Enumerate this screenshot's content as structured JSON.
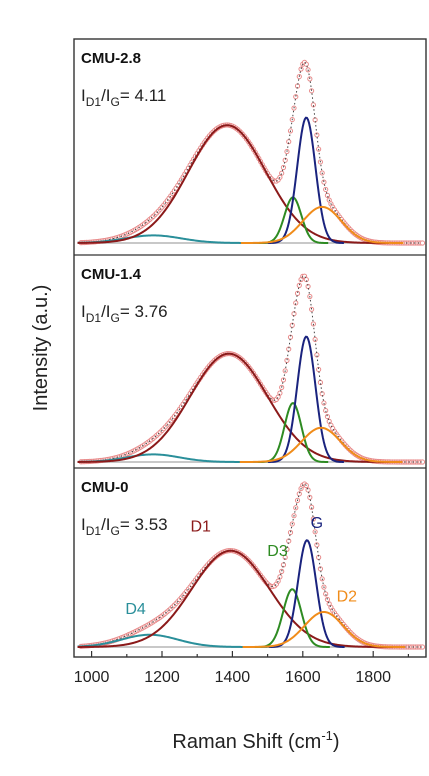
{
  "chart_data": {
    "type": "line",
    "xlabel": "Raman Shift (cm",
    "xlabel_sup": "-1",
    "xlabel_close": ")",
    "ylabel": "Intensity (a.u.)",
    "xlim": [
      950,
      1950
    ],
    "xticks": [
      1000,
      1200,
      1400,
      1600,
      1800
    ],
    "grid": false,
    "panels": [
      {
        "name": "CMU-2.8",
        "ratio_I": "I",
        "ratio_D1": "D1",
        "ratio_slash": "/I",
        "ratio_G": "G",
        "ratio_value": "= 4.11",
        "peaks": [
          {
            "id": "D4",
            "center": 1175,
            "width": 80,
            "height": 0.04
          },
          {
            "id": "D1",
            "center": 1385,
            "width": 110,
            "height": 0.62
          },
          {
            "id": "D3",
            "center": 1572,
            "width": 24,
            "height": 0.24
          },
          {
            "id": "G",
            "center": 1610,
            "width": 26,
            "height": 0.66
          },
          {
            "id": "D2",
            "center": 1655,
            "width": 55,
            "height": 0.19
          }
        ]
      },
      {
        "name": "CMU-1.4",
        "ratio_I": "I",
        "ratio_D1": "D1",
        "ratio_slash": "/I",
        "ratio_G": "G",
        "ratio_value": "= 3.76",
        "peaks": [
          {
            "id": "D4",
            "center": 1175,
            "width": 75,
            "height": 0.04
          },
          {
            "id": "D1",
            "center": 1390,
            "width": 110,
            "height": 0.57
          },
          {
            "id": "D3",
            "center": 1572,
            "width": 24,
            "height": 0.31
          },
          {
            "id": "G",
            "center": 1610,
            "width": 26,
            "height": 0.66
          },
          {
            "id": "D2",
            "center": 1652,
            "width": 55,
            "height": 0.18
          }
        ]
      },
      {
        "name": "CMU-0",
        "ratio_I": "I",
        "ratio_D1": "D1",
        "ratio_slash": "/I",
        "ratio_G": "G",
        "ratio_value": "= 3.53",
        "peaks": [
          {
            "id": "D4",
            "center": 1165,
            "width": 80,
            "height": 0.07
          },
          {
            "id": "D1",
            "center": 1395,
            "width": 110,
            "height": 0.55
          },
          {
            "id": "D3",
            "center": 1570,
            "width": 26,
            "height": 0.33
          },
          {
            "id": "G",
            "center": 1612,
            "width": 26,
            "height": 0.61
          },
          {
            "id": "D2",
            "center": 1660,
            "width": 55,
            "height": 0.2
          }
        ]
      }
    ],
    "peak_labels": [
      {
        "id": "D1",
        "text": "D1",
        "color": "#8b1a1a",
        "x": 1310,
        "y": 0.66
      },
      {
        "id": "D3",
        "text": "D3",
        "color": "#2e8b22",
        "x": 1528,
        "y": 0.52
      },
      {
        "id": "G",
        "text": "G",
        "color": "#1a237e",
        "x": 1640,
        "y": 0.68
      },
      {
        "id": "D2",
        "text": "D2",
        "color": "#f08c1a",
        "x": 1725,
        "y": 0.26
      },
      {
        "id": "D4",
        "text": "D4",
        "color": "#2a8f9a",
        "x": 1125,
        "y": 0.19
      }
    ],
    "colors": {
      "D1": "#8b1a1a",
      "D3": "#2e8b22",
      "G": "#1a237e",
      "D2": "#f08c1a",
      "D4": "#2a8f9a",
      "experimental": "#e88a8a",
      "experimental_dark": "#444444",
      "baseline": "#c8c8c8"
    }
  }
}
